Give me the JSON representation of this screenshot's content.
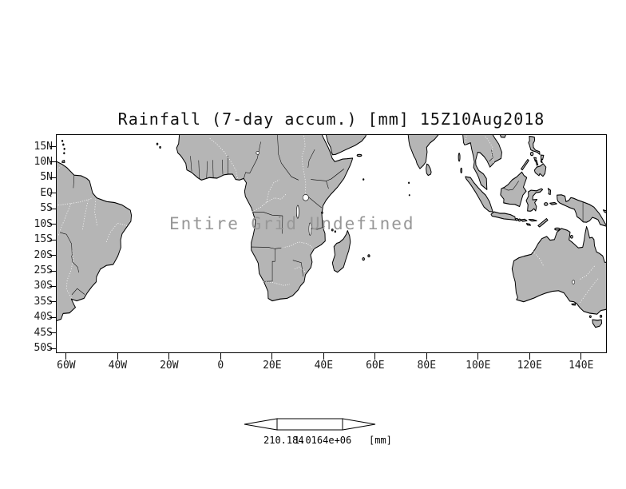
{
  "title": "Rainfall (7-day accum.) [mm] 15Z10Aug2018",
  "map": {
    "overlay_text": "Entire Grid Undefined",
    "lat_labels": [
      "15N",
      "10N",
      "5N",
      "EQ",
      "5S",
      "10S",
      "15S",
      "20S",
      "25S",
      "30S",
      "35S",
      "40S",
      "45S",
      "50S"
    ],
    "lon_labels": [
      "60W",
      "40W",
      "20W",
      "0",
      "20E",
      "40E",
      "60E",
      "80E",
      "100E",
      "120E",
      "140E"
    ],
    "land_color": "#b5b5b5",
    "coast_color": "#000000",
    "ocean_color": "#ffffff",
    "overlay_color": "#979797"
  },
  "colorbar": {
    "min_label": "210.184",
    "max_label": "1.0164e+06",
    "unit_label": "[mm]"
  }
}
